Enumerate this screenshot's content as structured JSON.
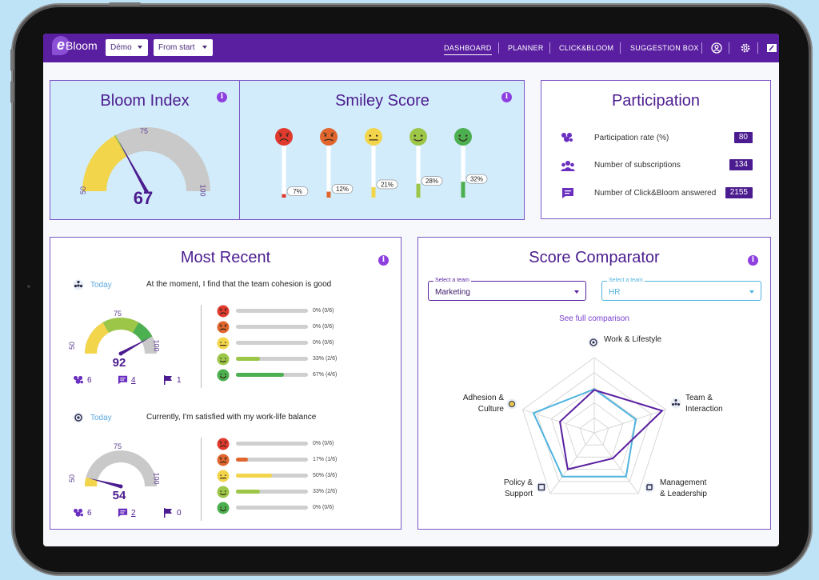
{
  "nav": {
    "logo_e": "e",
    "logo_text": "Bloom",
    "select_demo": "Démo",
    "select_period": "From start",
    "items": [
      {
        "label": "DASHBOARD",
        "active": true
      },
      {
        "label": "PLANNER",
        "active": false
      },
      {
        "label": "CLICK&BLOOM",
        "active": false
      },
      {
        "label": "SUGGESTION BOX",
        "active": false
      }
    ],
    "icons": [
      "profile-icon",
      "gear-icon",
      "edit-icon"
    ]
  },
  "bloom_index": {
    "title": "Bloom Index",
    "value": "67",
    "value_num": 67,
    "label_min": "50",
    "label_mid": "75",
    "label_max": "100"
  },
  "smiley_score": {
    "title": "Smiley Score",
    "items": [
      {
        "pct": "7%",
        "value": 7,
        "color": "#e03a2e"
      },
      {
        "pct": "12%",
        "value": 12,
        "color": "#e0662e"
      },
      {
        "pct": "21%",
        "value": 21,
        "color": "#f2d54b"
      },
      {
        "pct": "28%",
        "value": 28,
        "color": "#9cc648"
      },
      {
        "pct": "32%",
        "value": 32,
        "color": "#4caf50"
      }
    ]
  },
  "participation": {
    "title": "Participation",
    "rows": [
      {
        "label": "Participation rate (%)",
        "value": "80",
        "icon": "flower-icon"
      },
      {
        "label": "Number of subscriptions",
        "value": "134",
        "icon": "users-icon"
      },
      {
        "label": "Number of Click&Bloom answered",
        "value": "2155",
        "icon": "message-icon"
      }
    ]
  },
  "most_recent": {
    "title": "Most Recent",
    "entries": [
      {
        "date": "Today",
        "question": "At the moment, I find that the team cohesion is good",
        "gauge_value": "92",
        "gauge_num": 92,
        "label_min": "50",
        "label_mid": "75",
        "label_max": "100",
        "flowers": "6",
        "comments": "4",
        "flags": "1",
        "bars": [
          {
            "text": "0% (0/6)",
            "value": 0
          },
          {
            "text": "0% (0/6)",
            "value": 0
          },
          {
            "text": "0% (0/6)",
            "value": 0
          },
          {
            "text": "33% (2/6)",
            "value": 33
          },
          {
            "text": "67% (4/6)",
            "value": 67
          }
        ]
      },
      {
        "date": "Today",
        "question": "Currently, I'm satisfied with my work-life balance",
        "gauge_value": "54",
        "gauge_num": 54,
        "label_min": "50",
        "label_mid": "75",
        "label_max": "100",
        "flowers": "6",
        "comments": "2",
        "flags": "0",
        "bars": [
          {
            "text": "0% (0/6)",
            "value": 0
          },
          {
            "text": "17% (1/6)",
            "value": 17
          },
          {
            "text": "50% (3/6)",
            "value": 50
          },
          {
            "text": "33% (2/6)",
            "value": 33
          },
          {
            "text": "0% (0/6)",
            "value": 0
          }
        ]
      }
    ]
  },
  "score_comparator": {
    "title": "Score Comparator",
    "team_a": {
      "legend": "Select a team",
      "value": "Marketing",
      "color": "#5a1fa0"
    },
    "team_b": {
      "legend": "Select a team",
      "value": "HR",
      "color": "#4fb3de"
    },
    "link": "See full comparison",
    "axes": [
      {
        "line1": "Work & Lifestyle",
        "line2": ""
      },
      {
        "line1": "Team &",
        "line2": "Interaction"
      },
      {
        "line1": "Management",
        "line2": "& Leadership"
      },
      {
        "line1": "Policy &",
        "line2": "Support"
      },
      {
        "line1": "Adhesion &",
        "line2": "Culture"
      }
    ],
    "values_a": [
      0.57,
      0.95,
      0.42,
      0.6,
      0.48
    ],
    "values_b": [
      0.58,
      0.58,
      0.72,
      0.72,
      0.85
    ]
  }
}
